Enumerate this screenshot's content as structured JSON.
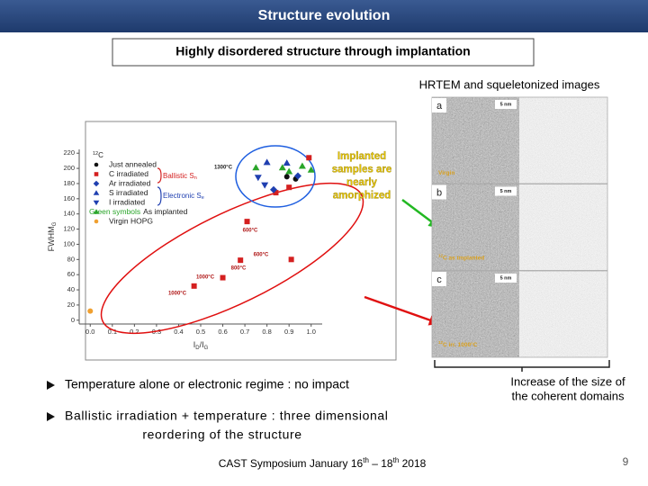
{
  "header": {
    "title": "Structure evolution"
  },
  "subtitle": "Highly disordered structure through implantation",
  "hrtem_caption": "HRTEM and squeletonized images",
  "plot": {
    "type": "scatter",
    "xlabel": [
      "I",
      "D",
      "/I",
      "G"
    ],
    "ylabel": [
      "FWHM",
      "G"
    ],
    "xlim": [
      -0.05,
      1.05
    ],
    "ylim": [
      -5,
      225
    ],
    "xticks": [
      {
        "value": 0,
        "label": "0.0"
      },
      0.1,
      0.2,
      0.3,
      0.4,
      0.5,
      0.6,
      0.7,
      0.8,
      0.9,
      {
        "value": 1,
        "label": "1.0"
      }
    ],
    "yticks": [
      0,
      20,
      40,
      60,
      80,
      100,
      120,
      140,
      160,
      180,
      200,
      220
    ],
    "legend_title": [
      "12",
      "C"
    ],
    "legend_prefix": "Green symbols",
    "series": [
      {
        "name": "Just annealed",
        "color": "#111111",
        "marker": "circle",
        "x": [
          0.89,
          0.93
        ],
        "values": [
          189,
          186
        ]
      },
      {
        "name": "C irradiated",
        "color": "#d42020",
        "marker": "square",
        "x": [
          0.71,
          0.91,
          0.68,
          0.6,
          0.47,
          0.84,
          0.9,
          0.99
        ],
        "values": [
          130,
          80,
          79,
          56,
          45,
          168,
          175,
          214
        ]
      },
      {
        "name": "Ar irradiated",
        "color": "#1f3fb0",
        "marker": "diamond",
        "x": [
          0.83,
          0.94
        ],
        "values": [
          172,
          190
        ]
      },
      {
        "name": "S irradiated",
        "color": "#1f3fb0",
        "marker": "triangle",
        "x": [
          0.8,
          0.89
        ],
        "values": [
          208,
          207
        ]
      },
      {
        "name": "I irradiated",
        "color": "#1f3fb0",
        "marker": "triangle-down",
        "x": [
          0.76,
          0.79
        ],
        "values": [
          188,
          178
        ]
      },
      {
        "name": "As implanted",
        "color": "#2aa52a",
        "marker": "triangle",
        "x": [
          0.75,
          0.87,
          0.96,
          0.9,
          1.0
        ],
        "values": [
          201,
          201,
          203,
          196,
          198
        ]
      },
      {
        "name": "Virgin HOPG",
        "color": "#f0a030",
        "marker": "circle",
        "x": [
          0.0
        ],
        "values": [
          12
        ]
      }
    ],
    "ballistic": [
      "Ballistic S",
      "n"
    ],
    "electronic": [
      "Electronic S",
      "e"
    ],
    "temperature_labels": [
      "1300°C",
      "600°C",
      "600°C",
      "800°C",
      "1000°C",
      "1000°C"
    ],
    "callout": [
      "Implanted",
      "samples are",
      "nearly",
      "amorphized"
    ]
  },
  "images": {
    "panel_letters": [
      "a",
      "b",
      "c"
    ],
    "scale_bars": [
      "5 nm",
      "5 nm",
      "5 nm"
    ],
    "captions": [
      [
        "",
        "Virgin"
      ],
      [
        "12",
        "C as implanted"
      ],
      [
        "12",
        "C irr. 1000°C"
      ]
    ]
  },
  "bullets": [
    [
      "Temperature alone or electronic regime : no impact"
    ],
    [
      "Ballistic irradiation + temperature : three dimensional",
      "reordering of the structure"
    ]
  ],
  "increase_note": [
    "Increase of the size of",
    "the coherent domains"
  ],
  "footer": [
    "CAST Symposium January 16",
    "th",
    " – 18",
    "th",
    " 2018"
  ],
  "page_number": "9"
}
